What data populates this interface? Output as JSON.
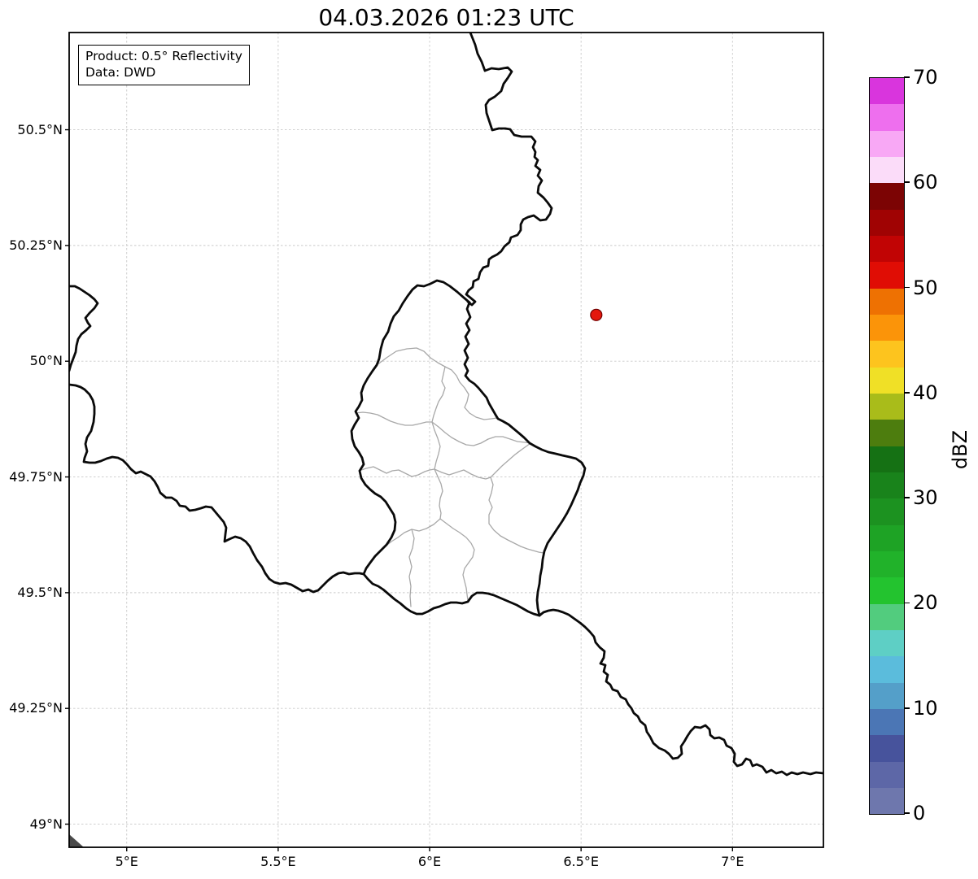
{
  "title": "04.03.2026 01:23 UTC",
  "info_box": {
    "line1": "Product: 0.5° Reflectivity",
    "line2": "Data: DWD"
  },
  "axes": {
    "x_ticks": [
      {
        "value": 5.0,
        "label": "5°E"
      },
      {
        "value": 5.5,
        "label": "5.5°E"
      },
      {
        "value": 6.0,
        "label": "6°E"
      },
      {
        "value": 6.5,
        "label": "6.5°E"
      },
      {
        "value": 7.0,
        "label": "7°E"
      }
    ],
    "y_ticks": [
      {
        "value": 50.5,
        "label": "50.5°N"
      },
      {
        "value": 50.25,
        "label": "50.25°N"
      },
      {
        "value": 50.0,
        "label": "50°N"
      },
      {
        "value": 49.75,
        "label": "49.75°N"
      },
      {
        "value": 49.5,
        "label": "49.5°N"
      },
      {
        "value": 49.25,
        "label": "49.25°N"
      },
      {
        "value": 49.0,
        "label": "49°N"
      }
    ]
  },
  "colorbar": {
    "label": "dBZ",
    "min": 0,
    "max": 70,
    "step_dbz": 2.5,
    "ticks": [
      {
        "value": 0,
        "label": "0"
      },
      {
        "value": 10,
        "label": "10"
      },
      {
        "value": 20,
        "label": "20"
      },
      {
        "value": 30,
        "label": "30"
      },
      {
        "value": 40,
        "label": "40"
      },
      {
        "value": 50,
        "label": "50"
      },
      {
        "value": 60,
        "label": "60"
      },
      {
        "value": 70,
        "label": "70"
      }
    ],
    "colors_bottom_to_top": [
      "#6e77ad",
      "#5d67a7",
      "#47539c",
      "#4b76b5",
      "#549fc9",
      "#5bbcdc",
      "#5ecfc5",
      "#52cc7e",
      "#23c32f",
      "#21b22a",
      "#1ea325",
      "#1c9220",
      "#19831b",
      "#157114",
      "#4d7d0e",
      "#a9bc1a",
      "#f0e026",
      "#fdc41e",
      "#fb9409",
      "#ee7102",
      "#e00d05",
      "#c10404",
      "#a00303",
      "#7c0404",
      "#fbdcf9",
      "#f8a8f5",
      "#ee6fee",
      "#d935dd"
    ]
  },
  "chart_data": {
    "type": "map",
    "title": "04.03.2026 01:23 UTC",
    "product": "0.5° Reflectivity",
    "data_source": "DWD",
    "units": "dBZ",
    "extent": {
      "lon_min": 4.81,
      "lon_max": 7.3,
      "lat_min": 48.95,
      "lat_max": 50.71
    },
    "grid": {
      "on": true,
      "style": "dashed",
      "lon_lines": [
        5.0,
        5.5,
        6.0,
        6.5,
        7.0
      ],
      "lat_lines": [
        49.0,
        49.25,
        49.5,
        49.75,
        50.0,
        50.25,
        50.5
      ]
    },
    "radar_marker": {
      "lon": 6.55,
      "lat": 50.1,
      "fill": "#e3170d",
      "edge": "#700000"
    },
    "reflectivity_echoes": [],
    "colorbar_range_dbz": [
      0,
      70
    ],
    "region": "Luxembourg and surrounding borders (BE / DE / FR), Luxembourg cantons drawn in gray"
  }
}
